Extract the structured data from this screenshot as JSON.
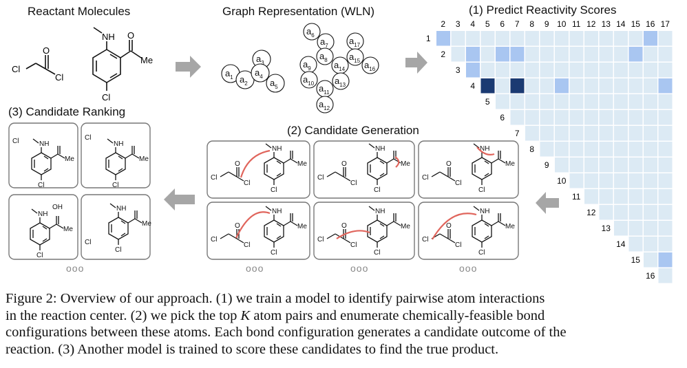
{
  "titles": {
    "reactants": "Reactant Molecules",
    "graph": "Graph Representation (WLN)",
    "predict": "(1) Predict Reactivity Scores",
    "generation": "(2) Candidate Generation",
    "ranking": "(3) Candidate Ranking"
  },
  "molecule_labels": {
    "cl": "Cl",
    "o": "O",
    "nh": "NH",
    "me": "Me",
    "oh": "OH",
    "n": "N"
  },
  "atoms": {
    "left": [
      {
        "base": "a",
        "sub": "1"
      },
      {
        "base": "a",
        "sub": "2"
      },
      {
        "base": "a",
        "sub": "3"
      },
      {
        "base": "a",
        "sub": "4"
      },
      {
        "base": "a",
        "sub": "5"
      }
    ],
    "right": [
      {
        "base": "a",
        "sub": "6"
      },
      {
        "base": "a",
        "sub": "7"
      },
      {
        "base": "a",
        "sub": "17"
      },
      {
        "base": "a",
        "sub": "8"
      },
      {
        "base": "a",
        "sub": "15"
      },
      {
        "base": "a",
        "sub": "9"
      },
      {
        "base": "a",
        "sub": "14"
      },
      {
        "base": "a",
        "sub": "16"
      },
      {
        "base": "a",
        "sub": "10"
      },
      {
        "base": "a",
        "sub": "13"
      },
      {
        "base": "a",
        "sub": "11"
      },
      {
        "base": "a",
        "sub": "12"
      }
    ]
  },
  "matrix": {
    "column_labels": [
      "2",
      "3",
      "4",
      "5",
      "6",
      "7",
      "8",
      "9",
      "10",
      "11",
      "12",
      "13",
      "14",
      "15",
      "16",
      "17"
    ],
    "row_labels": [
      "1",
      "2",
      "3",
      "4",
      "5",
      "6",
      "7",
      "8",
      "9",
      "10",
      "11",
      "12",
      "13",
      "14",
      "15",
      "16"
    ],
    "medium_cells": [
      [
        1,
        2
      ],
      [
        2,
        4
      ],
      [
        2,
        6
      ],
      [
        2,
        7
      ],
      [
        2,
        15
      ],
      [
        3,
        4
      ],
      [
        4,
        10
      ],
      [
        4,
        17
      ],
      [
        1,
        16
      ],
      [
        15,
        17
      ]
    ],
    "dark_cells": [
      [
        4,
        5
      ],
      [
        4,
        7
      ]
    ],
    "colors": {
      "light": "#dceaf4",
      "medium": "#a9c6f1",
      "dark": "#1b3a72"
    }
  },
  "more_indicator": "ooo",
  "caption": {
    "line1_a": "Figure 2: Overview of our approach. (1) we train a model to identify pairwise atom interactions",
    "line2_a": "in the reaction center. (2) we pick the top ",
    "line2_k": "K",
    "line2_b": " atom pairs and enumerate chemically-feasible bond",
    "line3": "configurations between these atoms. Each bond configuration generates a candidate outcome of the",
    "line4": "reaction. (3) Another model is trained to score these candidates to find the true product."
  }
}
